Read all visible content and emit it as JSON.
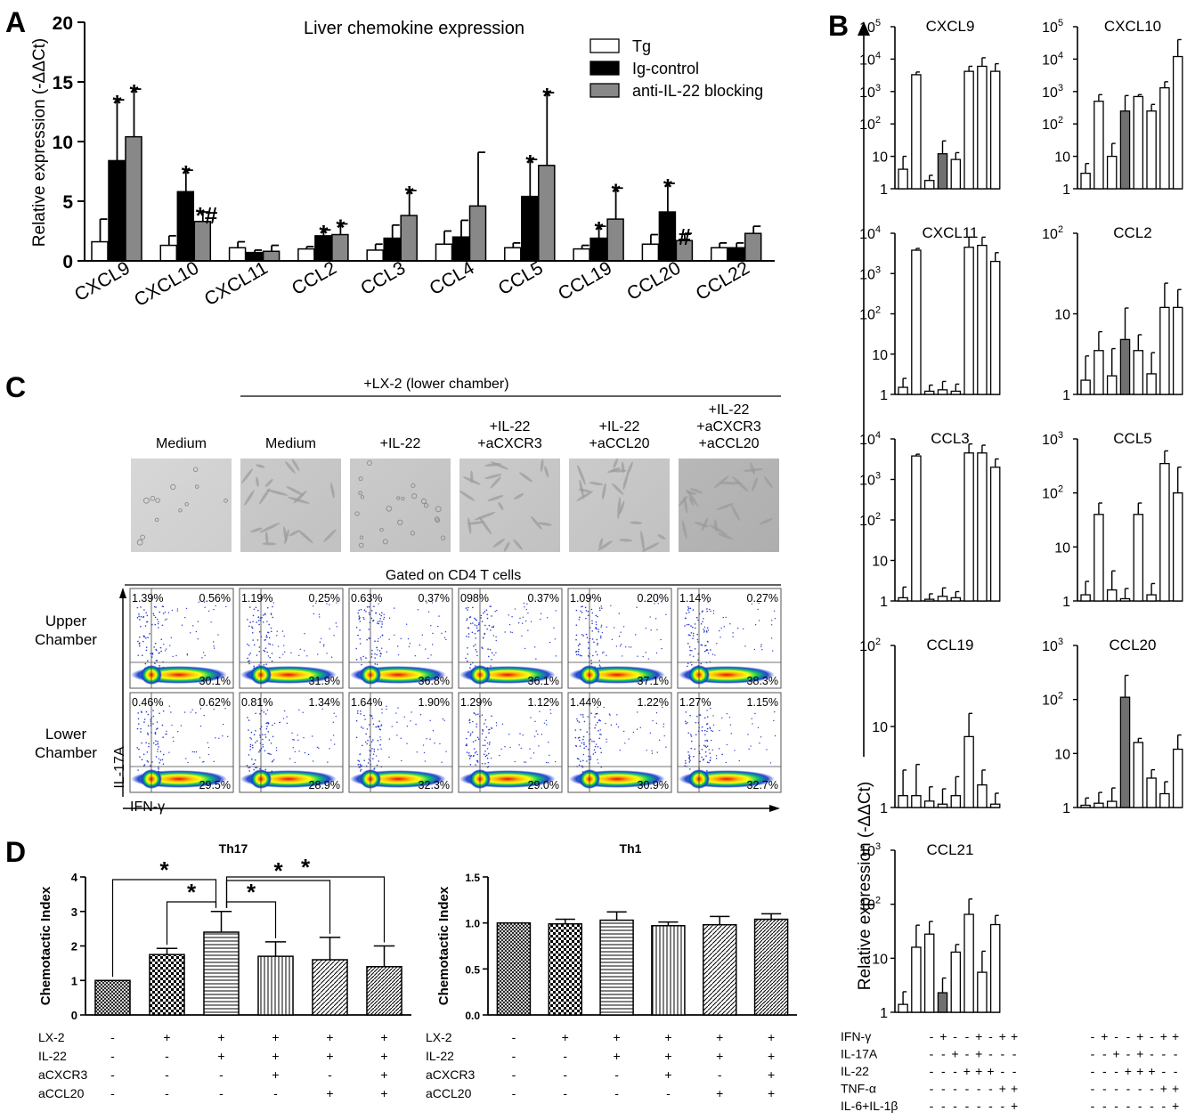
{
  "panel_labels": [
    "A",
    "B",
    "C",
    "D"
  ],
  "chart_data": [
    {
      "id": "A",
      "type": "bar",
      "title": "Liver chemokine expression",
      "ylabel": "Relative expression (-ΔΔCt)",
      "ylim": [
        0,
        20
      ],
      "yticks": [
        "0",
        "5",
        "10",
        "15",
        "20"
      ],
      "categories": [
        "CXCL9",
        "CXCL10",
        "CXCL11",
        "CCL2",
        "CCL3",
        "CCL4",
        "CCL5",
        "CCL19",
        "CCL20",
        "CCL22"
      ],
      "series": [
        {
          "name": "Tg",
          "color": "#ffffff",
          "values": [
            1.6,
            1.3,
            1.1,
            1.0,
            0.9,
            1.4,
            1.1,
            1.0,
            1.4,
            1.1
          ],
          "errors": [
            1.9,
            0.8,
            0.5,
            0.2,
            0.5,
            1.1,
            0.4,
            0.3,
            0.8,
            0.4
          ]
        },
        {
          "name": "Ig-control",
          "color": "#000000",
          "values": [
            8.4,
            5.8,
            0.7,
            2.1,
            1.9,
            2.0,
            5.4,
            1.9,
            4.1,
            1.1
          ],
          "errors": [
            5.1,
            1.8,
            0.2,
            0.5,
            1.1,
            1.4,
            3.1,
            1.0,
            2.4,
            0.4
          ]
        },
        {
          "name": "anti-IL-22 blocking",
          "color": "#888888",
          "values": [
            10.4,
            3.3,
            0.8,
            2.2,
            3.8,
            4.6,
            8.0,
            3.5,
            1.7,
            2.3
          ],
          "errors": [
            4.0,
            0.8,
            0.5,
            0.9,
            2.1,
            4.5,
            6.1,
            2.6,
            0.6,
            0.6
          ]
        }
      ],
      "annotations": [
        {
          "category": "CXCL9",
          "series": 1,
          "text": "*"
        },
        {
          "category": "CXCL9",
          "series": 2,
          "text": "*"
        },
        {
          "category": "CXCL10",
          "series": 1,
          "text": "*"
        },
        {
          "category": "CXCL10",
          "series": 2,
          "text": "*#"
        },
        {
          "category": "CCL2",
          "series": 1,
          "text": "*"
        },
        {
          "category": "CCL2",
          "series": 2,
          "text": "*"
        },
        {
          "category": "CCL3",
          "series": 2,
          "text": "*"
        },
        {
          "category": "CCL5",
          "series": 1,
          "text": "*"
        },
        {
          "category": "CCL5",
          "series": 2,
          "text": "*"
        },
        {
          "category": "CCL19",
          "series": 1,
          "text": "*"
        },
        {
          "category": "CCL19",
          "series": 2,
          "text": "*"
        },
        {
          "category": "CCL20",
          "series": 1,
          "text": "*"
        },
        {
          "category": "CCL20",
          "series": 2,
          "text": "#"
        }
      ]
    },
    {
      "id": "B",
      "type": "bar",
      "ylabel": "Relative expression (-ΔΔCt)",
      "scale": "log",
      "conditions": [
        "IFN-γ",
        "IL-17A",
        "IL-22",
        "TNF-α",
        "IL-6+IL-1β"
      ],
      "condition_matrix_left": [
        [
          "-",
          "+",
          "-",
          "-",
          "+",
          "-",
          "+",
          "+"
        ],
        [
          "-",
          "-",
          "+",
          "-",
          "+",
          "-",
          "-",
          "-"
        ],
        [
          "-",
          "-",
          "-",
          "+",
          "+",
          "+",
          "-",
          "-"
        ],
        [
          "-",
          "-",
          "-",
          "-",
          "-",
          "-",
          "+",
          "+"
        ],
        [
          "-",
          "-",
          "-",
          "-",
          "-",
          "-",
          "-",
          "+"
        ]
      ],
      "condition_matrix_right": [
        [
          "-",
          "+",
          "-",
          "-",
          "+",
          "-",
          "+",
          "+"
        ],
        [
          "-",
          "-",
          "+",
          "-",
          "+",
          "-",
          "-",
          "-"
        ],
        [
          "-",
          "-",
          "-",
          "+",
          "+",
          "+",
          "-",
          "-"
        ],
        [
          "-",
          "-",
          "-",
          "-",
          "-",
          "-",
          "+",
          "+"
        ],
        [
          "-",
          "-",
          "-",
          "-",
          "-",
          "-",
          "-",
          "+"
        ]
      ],
      "highlight_bar_index": 3,
      "subplots": [
        {
          "title": "CXCL9",
          "max_exp": 5,
          "tick_labels": [
            "1",
            "10",
            "10^2",
            "10^3",
            "10^4",
            "10^5"
          ],
          "values": [
            4,
            3300,
            1.8,
            12,
            8,
            4200,
            6000,
            4200
          ],
          "errors_up": [
            6,
            700,
            0.8,
            18,
            5,
            1800,
            5000,
            3000
          ]
        },
        {
          "title": "CXCL10",
          "max_exp": 5,
          "tick_labels": [
            "1",
            "10",
            "10^2",
            "10^3",
            "10^4",
            "10^5"
          ],
          "values": [
            3,
            500,
            10,
            250,
            700,
            250,
            1300,
            12000
          ],
          "errors_up": [
            3,
            300,
            15,
            500,
            100,
            150,
            700,
            28000
          ]
        },
        {
          "title": "CXCL11",
          "max_exp": 4,
          "tick_labels": [
            "1",
            "10",
            "10^2",
            "10^3",
            "10^4"
          ],
          "values": [
            1.5,
            3800,
            1.2,
            1.3,
            1.2,
            4500,
            5000,
            2000
          ],
          "errors_up": [
            1,
            400,
            0.5,
            0.8,
            0.6,
            3500,
            3000,
            1300
          ]
        },
        {
          "title": "CCL2",
          "max_exp": 2,
          "tick_labels": [
            "1",
            "10",
            "10^2"
          ],
          "values": [
            1.5,
            3.5,
            1.7,
            4.8,
            3.5,
            1.8,
            12,
            12
          ],
          "errors_up": [
            1.5,
            2.5,
            2,
            7,
            2,
            1.5,
            12,
            8
          ]
        },
        {
          "title": "CCL3",
          "max_exp": 4,
          "tick_labels": [
            "1",
            "10",
            "10^2",
            "10^3",
            "10^4"
          ],
          "values": [
            1.2,
            3800,
            1.1,
            1.3,
            1.2,
            4500,
            4500,
            2000
          ],
          "errors_up": [
            1,
            400,
            0.4,
            0.8,
            0.5,
            3000,
            2500,
            1200
          ]
        },
        {
          "title": "CCL5",
          "max_exp": 3,
          "tick_labels": [
            "1",
            "10",
            "10^2",
            "10^3"
          ],
          "values": [
            1.3,
            40,
            1.6,
            1.1,
            40,
            1.3,
            350,
            100
          ],
          "errors_up": [
            1,
            25,
            2,
            0.6,
            25,
            0.8,
            250,
            200
          ]
        },
        {
          "title": "CCL19",
          "max_exp": 2,
          "tick_labels": [
            "1",
            "10",
            "10^2"
          ],
          "values": [
            1.4,
            1.4,
            1.2,
            1.1,
            1.4,
            7.5,
            1.9,
            1.1
          ],
          "errors_up": [
            1.5,
            2,
            0.6,
            0.6,
            1,
            7,
            1,
            0.4
          ]
        },
        {
          "title": "CCL20",
          "max_exp": 3,
          "tick_labels": [
            "1",
            "10",
            "10^2",
            "10^3"
          ],
          "values": [
            1.1,
            1.2,
            1.3,
            110,
            16,
            3.5,
            1.8,
            12
          ],
          "errors_up": [
            0.4,
            0.7,
            1,
            170,
            3,
            1.5,
            1.2,
            10
          ]
        },
        {
          "title": "CCL21",
          "max_exp": 3,
          "tick_labels": [
            "1",
            "10",
            "10^2",
            "10^3"
          ],
          "values": [
            1.4,
            16,
            28,
            2.3,
            13,
            65,
            5.5,
            42
          ],
          "errors_up": [
            1,
            25,
            20,
            2,
            5,
            60,
            8,
            20
          ]
        }
      ]
    },
    {
      "id": "D-Th17",
      "type": "bar",
      "title": "Th17",
      "ylabel": "Chemotactic Index",
      "ylim": [
        0,
        4
      ],
      "yticks": [
        "0",
        "1",
        "2",
        "3",
        "4"
      ],
      "values": [
        1.0,
        1.75,
        2.4,
        1.7,
        1.6,
        1.4
      ],
      "errors": [
        0.0,
        0.18,
        0.6,
        0.42,
        0.65,
        0.6
      ],
      "significance": [
        {
          "from": 0,
          "to": 2,
          "text": "*"
        },
        {
          "from": 1,
          "to": 2,
          "text": "*"
        },
        {
          "from": 2,
          "to": 3,
          "text": "*"
        },
        {
          "from": 2,
          "to": 4,
          "text": "*"
        },
        {
          "from": 2,
          "to": 5,
          "text": "*"
        }
      ],
      "conditions": [
        "LX-2",
        "IL-22",
        "aCXCR3",
        "aCCL20"
      ],
      "condition_matrix": [
        [
          "-",
          "+",
          "+",
          "+",
          "+",
          "+"
        ],
        [
          "-",
          "-",
          "+",
          "+",
          "+",
          "+"
        ],
        [
          "-",
          "-",
          "-",
          "+",
          "-",
          "+"
        ],
        [
          "-",
          "-",
          "-",
          "-",
          "+",
          "+"
        ]
      ]
    },
    {
      "id": "D-Th1",
      "type": "bar",
      "title": "Th1",
      "ylabel": "Chemotactic Index",
      "ylim": [
        0,
        1.5
      ],
      "yticks": [
        "0.0",
        "0.5",
        "1.0",
        "1.5"
      ],
      "values": [
        1.0,
        0.99,
        1.03,
        0.97,
        0.98,
        1.04
      ],
      "errors": [
        0.0,
        0.05,
        0.09,
        0.04,
        0.09,
        0.06
      ],
      "conditions": [
        "LX-2",
        "IL-22",
        "aCXCR3",
        "aCCL20"
      ],
      "condition_matrix": [
        [
          "-",
          "+",
          "+",
          "+",
          "+",
          "+"
        ],
        [
          "-",
          "-",
          "+",
          "+",
          "+",
          "+"
        ],
        [
          "-",
          "-",
          "-",
          "+",
          "-",
          "+"
        ],
        [
          "-",
          "-",
          "-",
          "-",
          "+",
          "+"
        ]
      ]
    }
  ],
  "panelC": {
    "lx2_header": "+LX-2 (lower chamber)",
    "conditions": [
      "Medium",
      "Medium",
      "+IL-22",
      "+IL-22\n+aCXCR3",
      "+IL-22\n+aCCL20",
      "+IL-22\n+aCXCR3\n+aCCL20"
    ],
    "gated_label": "Gated on CD4 T cells",
    "row_labels": [
      "Upper\nChamber",
      "Lower\nChamber"
    ],
    "y_axis": "IL-17A",
    "x_axis": "IFN-γ",
    "flow": [
      [
        {
          "ul": "1.39%",
          "ur": "0.56%",
          "lr": "30.1%"
        },
        {
          "ul": "1.19%",
          "ur": "0.25%",
          "lr": "31.9%"
        },
        {
          "ul": "0.63%",
          "ur": "0.37%",
          "lr": "36.8%"
        },
        {
          "ul": "098%",
          "ur": "0.37%",
          "lr": "36.1%"
        },
        {
          "ul": "1.09%",
          "ur": "0.20%",
          "lr": "37.1%"
        },
        {
          "ul": "1.14%",
          "ur": "0.27%",
          "lr": "38.3%"
        }
      ],
      [
        {
          "ul": "0.46%",
          "ur": "0.62%",
          "lr": "29.5%"
        },
        {
          "ul": "0.81%",
          "ur": "1.34%",
          "lr": "28.9%"
        },
        {
          "ul": "1.64%",
          "ur": "1.90%",
          "lr": "32.3%"
        },
        {
          "ul": "1.29%",
          "ur": "1.12%",
          "lr": "29.0%"
        },
        {
          "ul": "1.44%",
          "ur": "1.22%",
          "lr": "30.9%"
        },
        {
          "ul": "1.27%",
          "ur": "1.15%",
          "lr": "32.7%"
        }
      ]
    ]
  }
}
